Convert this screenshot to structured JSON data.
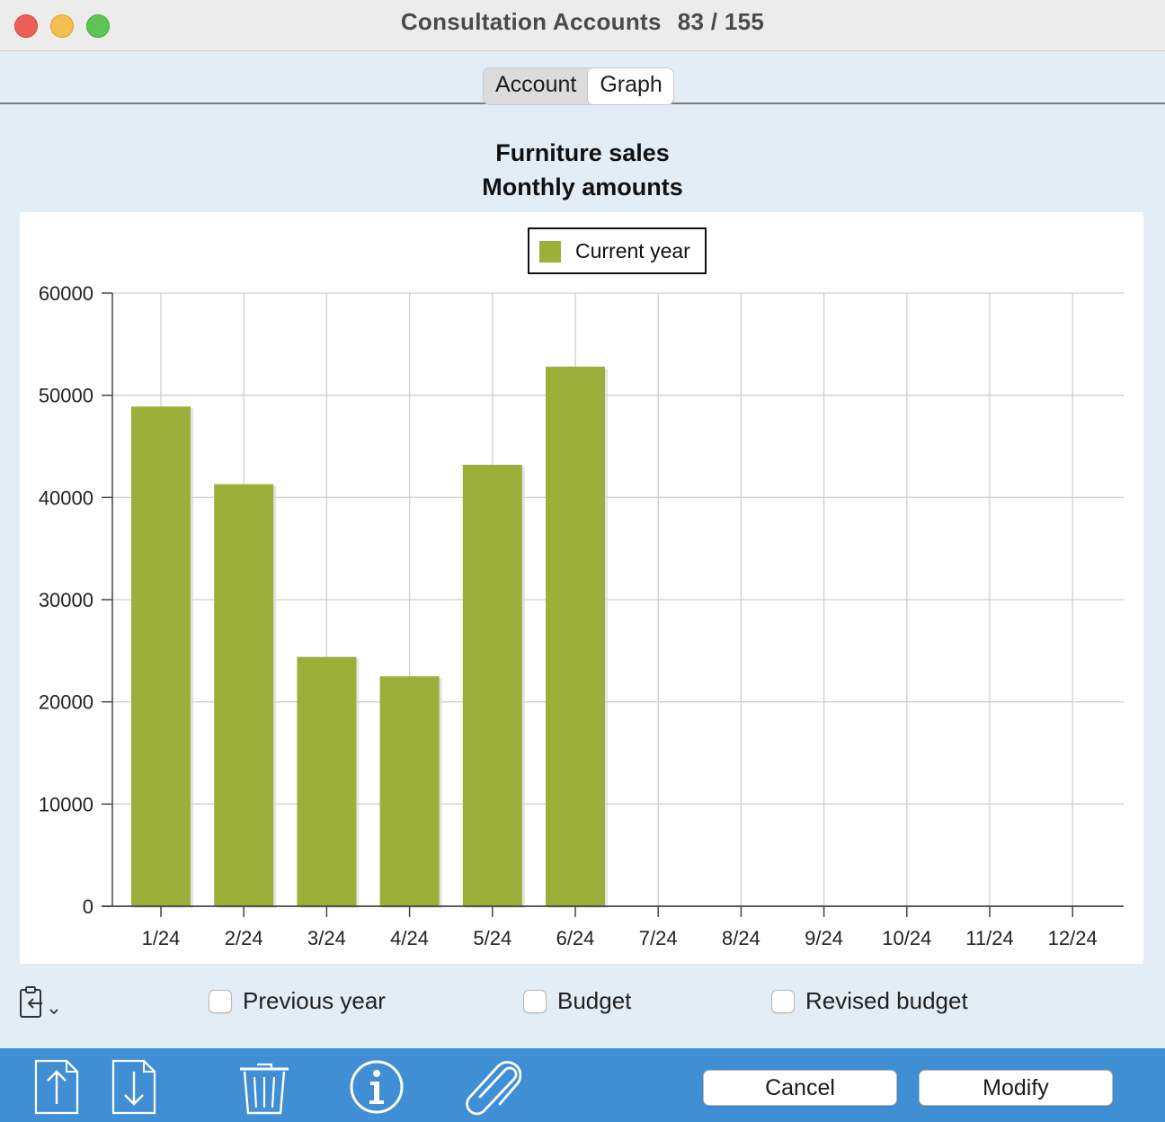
{
  "window": {
    "title": "Consultation Accounts",
    "record_counter": "83 / 155"
  },
  "tabs": [
    {
      "label": "Account",
      "active": false
    },
    {
      "label": "Graph",
      "active": true
    }
  ],
  "chart_data": {
    "type": "bar",
    "title": "Furniture sales",
    "subtitle": "Monthly amounts",
    "categories": [
      "1/24",
      "2/24",
      "3/24",
      "4/24",
      "5/24",
      "6/24",
      "7/24",
      "8/24",
      "9/24",
      "10/24",
      "11/24",
      "12/24"
    ],
    "series": [
      {
        "name": "Current year",
        "color": "#9caf38",
        "values": [
          48900,
          41300,
          24400,
          22500,
          43200,
          52800,
          null,
          null,
          null,
          null,
          null,
          null
        ]
      }
    ],
    "ylim": [
      0,
      60000
    ],
    "yticks": [
      0,
      10000,
      20000,
      30000,
      40000,
      50000,
      60000
    ],
    "grid": true,
    "legend_position": "top-center"
  },
  "options": {
    "previous_year": {
      "label": "Previous year",
      "checked": false
    },
    "budget": {
      "label": "Budget",
      "checked": false
    },
    "revised_budget": {
      "label": "Revised budget",
      "checked": false
    }
  },
  "toolbar": {
    "icons": [
      "clipboard-export-icon",
      "move-up-icon",
      "move-down-icon",
      "trash-icon",
      "info-icon",
      "paperclip-icon"
    ],
    "cancel_label": "Cancel",
    "modify_label": "Modify"
  }
}
